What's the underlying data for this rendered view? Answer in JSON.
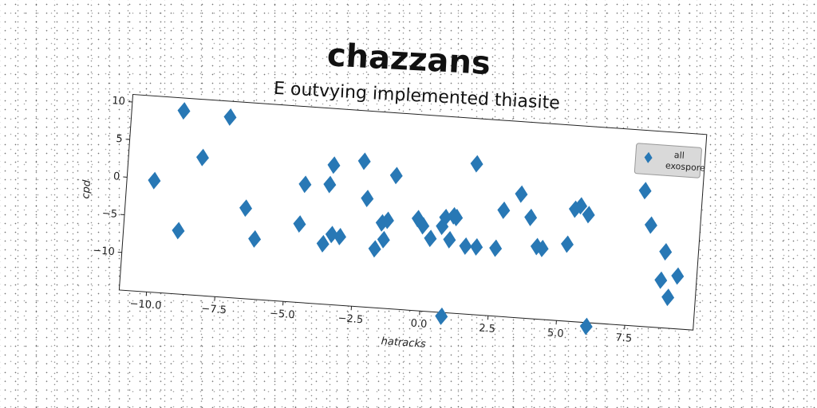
{
  "chart_data": {
    "type": "scatter",
    "title": "chazzans",
    "subtitle": "E outvying implemented thiasite",
    "xlabel": "hatracks",
    "ylabel": "cpd",
    "xlim": [
      -11.0,
      10.0
    ],
    "ylim": [
      -15.0,
      11.0
    ],
    "xticks": [
      -10.0,
      -7.5,
      -5.0,
      -2.5,
      0.0,
      2.5,
      5.0,
      7.5
    ],
    "xtick_labels": [
      "−10.0",
      "−7.5",
      "−5.0",
      "−2.5",
      "0.0",
      "2.5",
      "5.0",
      "7.5"
    ],
    "yticks": [
      10,
      5,
      0,
      -5,
      -10
    ],
    "ytick_labels": [
      "10",
      "5",
      "0",
      "−5",
      "−10"
    ],
    "grid": false,
    "legend_position": "top-right",
    "marker": "diamond",
    "color": "#2878b5",
    "series": [
      {
        "name": "all exospore",
        "x": [
          -10.0,
          -9.1,
          -9.0,
          -8.3,
          -7.4,
          -6.6,
          -6.2,
          -4.6,
          -4.5,
          -3.7,
          -3.6,
          -3.5,
          -3.4,
          -3.1,
          -2.4,
          -2.2,
          -1.8,
          -1.6,
          -1.5,
          -1.4,
          -1.2,
          -0.3,
          -0.1,
          0.2,
          0.6,
          0.7,
          0.8,
          0.9,
          1.0,
          1.1,
          1.5,
          1.7,
          1.9,
          2.6,
          2.8,
          3.4,
          3.8,
          4.1,
          4.3,
          5.2,
          5.4,
          5.6,
          5.9,
          6.1,
          7.9,
          8.2,
          8.7,
          8.8,
          9.0,
          9.3
        ],
        "y": [
          -0.2,
          9.3,
          -6.6,
          3.3,
          8.9,
          -3.0,
          -7.0,
          -4.6,
          0.7,
          -7.0,
          0.9,
          3.5,
          -5.7,
          -5.9,
          4.3,
          -0.6,
          -7.2,
          -3.7,
          -5.9,
          -3.3,
          2.7,
          -2.8,
          -3.7,
          -5.3,
          -3.6,
          -2.4,
          -15.5,
          -5.3,
          -2.1,
          -2.3,
          -6.0,
          5.0,
          -6.0,
          -6.0,
          -0.9,
          1.4,
          -1.6,
          -5.4,
          -5.6,
          -4.8,
          -0.1,
          0.4,
          -0.7,
          -15.5,
          3.0,
          -1.5,
          -8.7,
          -4.9,
          -10.9,
          -8.0
        ]
      }
    ]
  }
}
